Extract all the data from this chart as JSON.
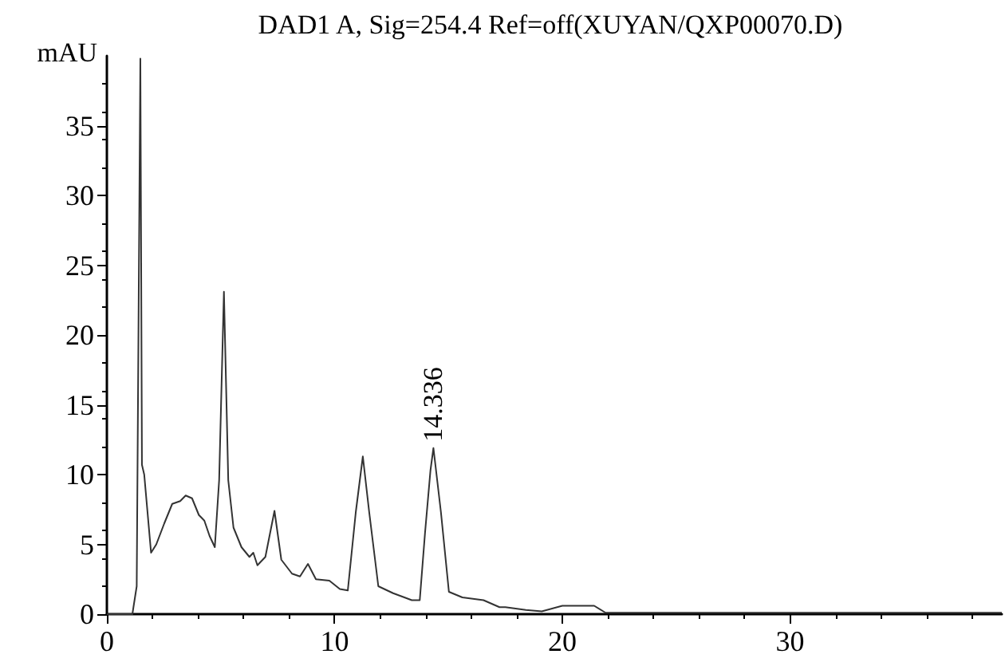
{
  "chart_data": {
    "type": "line",
    "title": "DAD1 A, Sig=254.4 Ref=off(XUYAN/QXP00070.D)",
    "ylabel": "mAU",
    "x": [
      0,
      1.12,
      1.31,
      1.47,
      1.54,
      1.64,
      1.94,
      2.17,
      2.52,
      2.87,
      3.22,
      3.46,
      3.74,
      4.04,
      4.28,
      4.51,
      4.74,
      4.93,
      5.14,
      5.33,
      5.56,
      5.91,
      6.26,
      6.43,
      6.61,
      6.96,
      7.36,
      7.66,
      8.13,
      8.48,
      8.83,
      9.18,
      9.77,
      10.23,
      10.58,
      10.93,
      11.24,
      11.52,
      11.92,
      12.57,
      13.39,
      13.74,
      13.97,
      14.21,
      14.34,
      14.67,
      15.02,
      15.61,
      16.54,
      17.24,
      17.5,
      18.4,
      19.1,
      20.0,
      21.4,
      21.9,
      30,
      39.3
    ],
    "series": [
      {
        "color": "#333333",
        "values": [
          0,
          0,
          2,
          39.8,
          10.7,
          10,
          4.4,
          5.0,
          6.5,
          7.9,
          8.1,
          8.5,
          8.3,
          7.1,
          6.7,
          5.6,
          4.8,
          9.6,
          23.1,
          9.6,
          6.2,
          4.8,
          4.1,
          4.4,
          3.5,
          4.1,
          7.4,
          3.9,
          2.9,
          2.7,
          3.6,
          2.5,
          2.4,
          1.8,
          1.7,
          7.3,
          11.3,
          7.3,
          2.0,
          1.5,
          1.0,
          1.0,
          5.8,
          10.3,
          11.9,
          7.3,
          1.6,
          1.2,
          1.0,
          0.5,
          0.5,
          0.3,
          0.2,
          0.6,
          0.6,
          0.1,
          0.1,
          0.1
        ]
      }
    ],
    "annotations": [
      {
        "text": "14.336",
        "x": 14.336,
        "y": 11.9
      }
    ],
    "xlim": [
      0,
      39.3
    ],
    "xticks": [
      0,
      10,
      20,
      30
    ],
    "ylim": [
      0,
      40
    ],
    "yticks": [
      0,
      5,
      10,
      15,
      20,
      25,
      30,
      35
    ],
    "grid": false,
    "marker": "none",
    "line_style": "solid"
  }
}
